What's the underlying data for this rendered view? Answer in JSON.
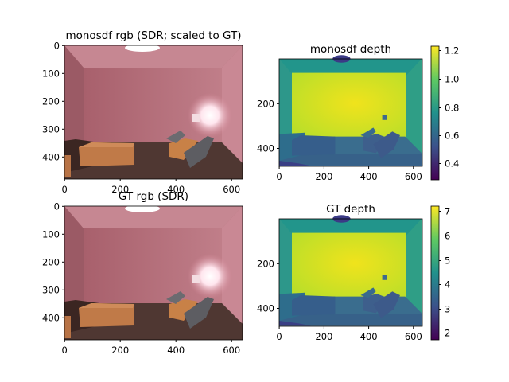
{
  "panels": [
    {
      "title": "monosdf rgb (SDR; scaled to GT)",
      "x_ticks": [
        "0",
        "200",
        "400",
        "600"
      ],
      "y_ticks": [
        "0",
        "100",
        "200",
        "300",
        "400"
      ]
    },
    {
      "title": "monosdf depth",
      "x_ticks": [
        "0",
        "200",
        "400",
        "600"
      ],
      "y_ticks": [
        "200",
        "400"
      ],
      "colorbar_ticks": [
        "1.2",
        "1.0",
        "0.8",
        "0.6",
        "0.4"
      ]
    },
    {
      "title": "GT rgb (SDR)",
      "x_ticks": [
        "0",
        "200",
        "400",
        "600"
      ],
      "y_ticks": [
        "0",
        "100",
        "200",
        "300",
        "400"
      ]
    },
    {
      "title": "GT depth",
      "x_ticks": [
        "0",
        "200",
        "400",
        "600"
      ],
      "y_ticks": [
        "200",
        "400"
      ],
      "colorbar_ticks": [
        "7",
        "6",
        "5",
        "4",
        "3",
        "2"
      ]
    }
  ],
  "colors": {
    "room_wall": "#b46d78",
    "room_floor": "#4f3732",
    "cushion": "#c07a48",
    "depth_far": "#e8e21c",
    "depth_near": "#3a578c",
    "viridis": [
      "#440154",
      "#3b528b",
      "#21918c",
      "#5ec962",
      "#fde725"
    ]
  }
}
